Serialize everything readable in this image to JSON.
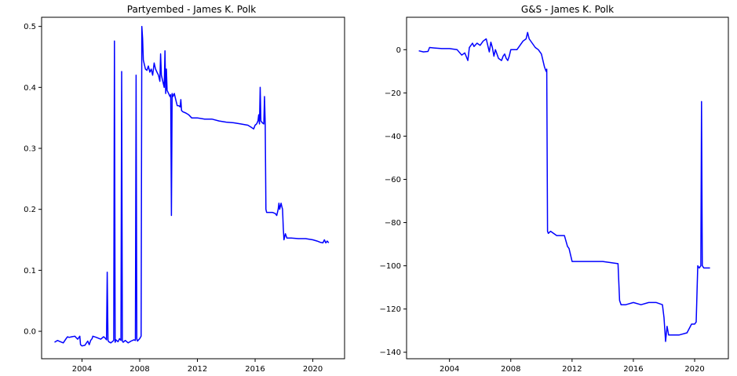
{
  "line_color": "#0000ff",
  "chart_data": [
    {
      "type": "line",
      "title": "Partyembed - James K. Polk",
      "xlabel": "",
      "ylabel": "",
      "xlim": [
        2001.2,
        2022.2
      ],
      "ylim": [
        -0.045,
        0.515
      ],
      "xticks": [
        2004,
        2008,
        2012,
        2016,
        2020
      ],
      "xtick_labels": [
        "2004",
        "2008",
        "2012",
        "2016",
        "2020"
      ],
      "yticks": [
        0.0,
        0.1,
        0.2,
        0.3,
        0.4,
        0.5
      ],
      "ytick_labels": [
        "0.0",
        "0.1",
        "0.2",
        "0.3",
        "0.4",
        "0.5"
      ],
      "grid": false,
      "series": [
        {
          "x": [
            2002.1,
            2002.3,
            2002.5,
            2002.7,
            2002.9,
            2003.0,
            2003.1,
            2003.3,
            2003.5,
            2003.7,
            2003.85,
            2003.9,
            2004.0,
            2004.2,
            2004.4,
            2004.5,
            2004.6,
            2004.7,
            2004.75,
            2005.0,
            2005.3,
            2005.5,
            2005.6,
            2005.7,
            2005.75,
            2005.8,
            2005.85,
            2006.0,
            2006.2,
            2006.25,
            2006.3,
            2006.35,
            2006.5,
            2006.6,
            2006.7,
            2006.75,
            2006.8,
            2006.85,
            2007.0,
            2007.2,
            2007.4,
            2007.6,
            2007.7,
            2007.75,
            2007.8,
            2007.85,
            2008.0,
            2008.1,
            2008.15,
            2008.2,
            2008.25,
            2008.3,
            2008.4,
            2008.5,
            2008.6,
            2008.7,
            2008.8,
            2008.9,
            2009.0,
            2009.1,
            2009.2,
            2009.3,
            2009.4,
            2009.45,
            2009.5,
            2009.6,
            2009.7,
            2009.75,
            2009.8,
            2009.85,
            2009.9,
            2010.0,
            2010.1,
            2010.15,
            2010.2,
            2010.25,
            2010.3,
            2010.4,
            2010.5,
            2010.6,
            2010.7,
            2010.8,
            2010.85,
            2010.9,
            2011.0,
            2011.2,
            2011.4,
            2011.6,
            2012.0,
            2012.5,
            2013.0,
            2013.5,
            2014.0,
            2014.5,
            2015.0,
            2015.5,
            2015.7,
            2015.9,
            2016.0,
            2016.1,
            2016.2,
            2016.25,
            2016.3,
            2016.35,
            2016.4,
            2016.5,
            2016.6,
            2016.65,
            2016.7,
            2016.75,
            2016.8,
            2017.0,
            2017.2,
            2017.4,
            2017.5,
            2017.6,
            2017.65,
            2017.7,
            2017.8,
            2017.85,
            2017.9,
            2017.95,
            2018.0,
            2018.1,
            2018.2,
            2018.5,
            2019.0,
            2019.5,
            2020.0,
            2020.3,
            2020.5,
            2020.7,
            2020.8,
            2020.9,
            2021.0,
            2021.1
          ],
          "y": [
            -0.018,
            -0.015,
            -0.017,
            -0.019,
            -0.012,
            -0.009,
            -0.01,
            -0.009,
            -0.008,
            -0.013,
            -0.008,
            -0.022,
            -0.024,
            -0.023,
            -0.016,
            -0.022,
            -0.015,
            -0.012,
            -0.008,
            -0.01,
            -0.013,
            -0.009,
            -0.011,
            -0.014,
            0.097,
            -0.015,
            -0.017,
            -0.019,
            -0.015,
            0.476,
            -0.018,
            -0.014,
            -0.017,
            -0.012,
            -0.015,
            0.426,
            -0.016,
            -0.018,
            -0.015,
            -0.019,
            -0.016,
            -0.014,
            -0.015,
            0.42,
            -0.012,
            -0.016,
            -0.012,
            -0.008,
            0.5,
            0.48,
            0.445,
            0.44,
            0.43,
            0.428,
            0.435,
            0.425,
            0.43,
            0.42,
            0.44,
            0.43,
            0.425,
            0.42,
            0.41,
            0.455,
            0.42,
            0.41,
            0.4,
            0.46,
            0.39,
            0.43,
            0.395,
            0.39,
            0.385,
            0.388,
            0.19,
            0.39,
            0.385,
            0.39,
            0.38,
            0.37,
            0.37,
            0.368,
            0.38,
            0.362,
            0.36,
            0.358,
            0.355,
            0.35,
            0.35,
            0.348,
            0.348,
            0.345,
            0.343,
            0.342,
            0.34,
            0.338,
            0.335,
            0.332,
            0.338,
            0.34,
            0.345,
            0.355,
            0.34,
            0.4,
            0.345,
            0.342,
            0.34,
            0.385,
            0.34,
            0.2,
            0.195,
            0.195,
            0.195,
            0.193,
            0.19,
            0.2,
            0.21,
            0.2,
            0.21,
            0.205,
            0.2,
            0.17,
            0.15,
            0.16,
            0.153,
            0.153,
            0.152,
            0.152,
            0.15,
            0.148,
            0.146,
            0.145,
            0.15,
            0.145,
            0.148,
            0.145
          ]
        }
      ]
    },
    {
      "type": "line",
      "title": "G&S - James K. Polk",
      "xlabel": "",
      "ylabel": "",
      "xlim": [
        2001.2,
        2022.2
      ],
      "ylim": [
        -143,
        15
      ],
      "xticks": [
        2004,
        2008,
        2012,
        2016,
        2020
      ],
      "xtick_labels": [
        "2004",
        "2008",
        "2012",
        "2016",
        "2020"
      ],
      "yticks": [
        0,
        -20,
        -40,
        -60,
        -80,
        -100,
        -120,
        -140
      ],
      "ytick_labels": [
        "0",
        "−20",
        "−40",
        "−60",
        "−80",
        "−100",
        "−120",
        "−140"
      ],
      "grid": false,
      "series": [
        {
          "x": [
            2002.0,
            2002.3,
            2002.6,
            2002.7,
            2003.0,
            2003.5,
            2004.0,
            2004.5,
            2004.8,
            2005.0,
            2005.2,
            2005.3,
            2005.4,
            2005.5,
            2005.6,
            2005.8,
            2006.0,
            2006.2,
            2006.4,
            2006.6,
            2006.7,
            2006.8,
            2006.9,
            2007.0,
            2007.2,
            2007.4,
            2007.5,
            2007.6,
            2007.7,
            2007.8,
            2007.9,
            2008.0,
            2008.2,
            2008.4,
            2008.6,
            2008.8,
            2009.0,
            2009.1,
            2009.2,
            2009.4,
            2009.6,
            2009.8,
            2010.0,
            2010.2,
            2010.3,
            2010.35,
            2010.4,
            2010.45,
            2010.6,
            2011.0,
            2011.5,
            2011.7,
            2011.8,
            2012.0,
            2012.5,
            2013.0,
            2014.0,
            2015.0,
            2015.1,
            2015.2,
            2015.3,
            2015.5,
            2016.0,
            2016.5,
            2017.0,
            2017.5,
            2017.9,
            2018.0,
            2018.1,
            2018.2,
            2018.3,
            2018.5,
            2019.0,
            2019.5,
            2019.8,
            2020.0,
            2020.1,
            2020.2,
            2020.3,
            2020.4,
            2020.45,
            2020.5,
            2020.6,
            2020.8,
            2021.0
          ],
          "y": [
            -0.5,
            -1.0,
            -0.8,
            1.0,
            0.8,
            0.5,
            0.5,
            0.0,
            -2.5,
            -1.5,
            -5.0,
            1.0,
            2.0,
            3.0,
            1.5,
            3.0,
            2.0,
            4.0,
            5.0,
            -1.0,
            3.5,
            1.0,
            -3.0,
            0.0,
            -4.0,
            -5.0,
            -3.0,
            -2.0,
            -4.0,
            -5.0,
            -3.0,
            0.0,
            0.0,
            0.0,
            2.0,
            4.0,
            5.0,
            8.0,
            5.0,
            3.0,
            1.0,
            0.0,
            -2.0,
            -8.0,
            -10.0,
            -9.0,
            -84.0,
            -85.0,
            -84.0,
            -86.0,
            -86.0,
            -91.0,
            -92.0,
            -98.0,
            -98.0,
            -98.0,
            -98.0,
            -99.0,
            -116.0,
            -118.0,
            -118.0,
            -118.0,
            -117.0,
            -118.0,
            -117.0,
            -117.0,
            -118.0,
            -124.0,
            -135.0,
            -128.0,
            -132.0,
            -132.0,
            -132.0,
            -131.0,
            -127.0,
            -127.0,
            -126.0,
            -100.0,
            -101.0,
            -100.0,
            -24.0,
            -100.0,
            -101.0,
            -101.0,
            -101.0
          ]
        }
      ]
    }
  ]
}
